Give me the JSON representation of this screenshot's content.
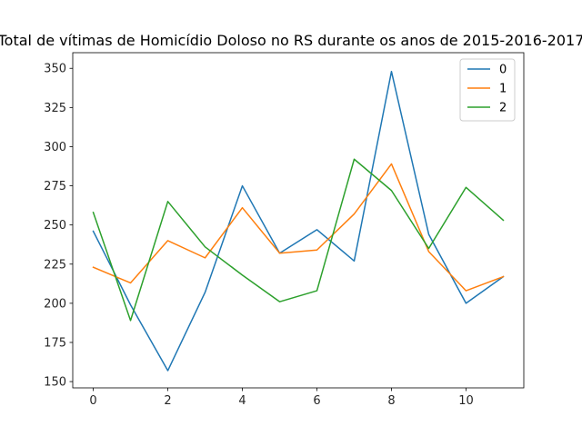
{
  "chart_data": {
    "type": "line",
    "title": "Total de vítimas de Homicídio Doloso no RS durante os anos de 2015-2016-2017",
    "xlabel": "",
    "ylabel": "",
    "x": [
      0,
      1,
      2,
      3,
      4,
      5,
      6,
      7,
      8,
      9,
      10,
      11
    ],
    "xlim": [
      -0.55,
      11.55
    ],
    "ylim": [
      146,
      360
    ],
    "xticks": [
      0,
      2,
      4,
      6,
      8,
      10
    ],
    "yticks": [
      150,
      175,
      200,
      225,
      250,
      275,
      300,
      325,
      350
    ],
    "grid": false,
    "legend_position": "top-right",
    "series": [
      {
        "name": "0",
        "color": "#1f77b4",
        "values": [
          246,
          199,
          157,
          207,
          275,
          232,
          247,
          227,
          348,
          244,
          200,
          217
        ]
      },
      {
        "name": "1",
        "color": "#ff7f0e",
        "values": [
          223,
          213,
          240,
          229,
          261,
          232,
          234,
          257,
          289,
          233,
          208,
          217
        ]
      },
      {
        "name": "2",
        "color": "#2ca02c",
        "values": [
          258,
          189,
          265,
          236,
          218,
          201,
          208,
          292,
          272,
          235,
          274,
          253
        ]
      }
    ]
  }
}
